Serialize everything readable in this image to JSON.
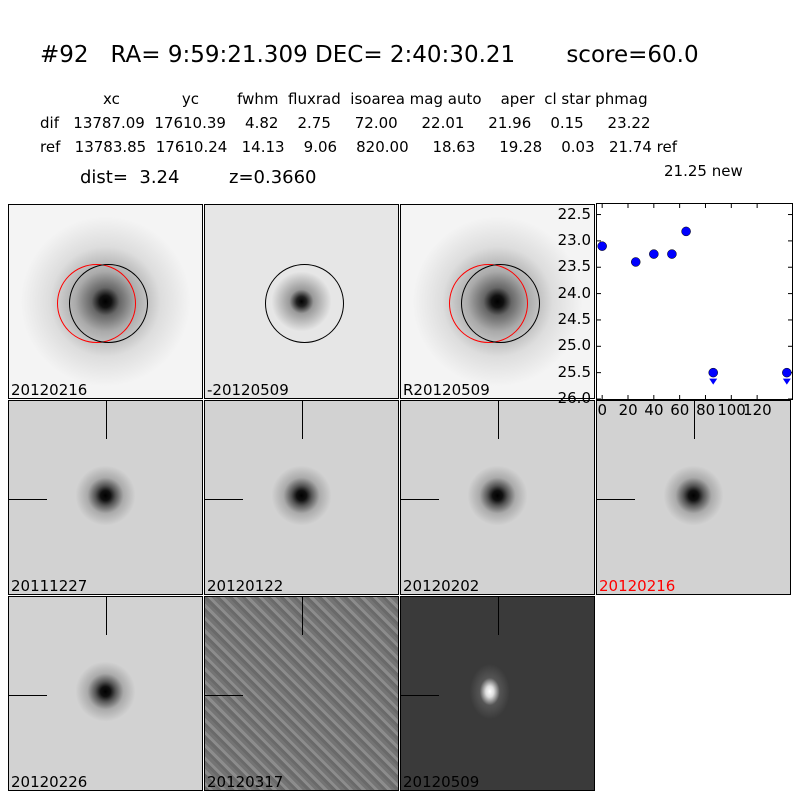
{
  "header": {
    "title": "#92   RA= 9:59:21.309 DEC= 2:40:30.21       score=60.0",
    "columns": "xc             yc        fwhm  fluxrad  isoarea mag auto    aper  cl star phmag",
    "dif_row": "dif   13787.09  17610.39    4.82    2.75     72.00     22.01     21.96    0.15     23.22",
    "ref_row": "ref   13783.85  17610.24   14.13    9.06    820.00     18.63     19.28    0.03   21.74 ref",
    "new_mag": "21.25 new",
    "dist": "dist=  3.24",
    "z": "z=0.3660"
  },
  "stamps": [
    {
      "label": "20120216",
      "style": "ref"
    },
    {
      "label": "-20120509",
      "style": "diff"
    },
    {
      "label": "R20120509",
      "style": "ref"
    },
    {
      "label": "20111227",
      "style": "epoch"
    },
    {
      "label": "20120122",
      "style": "epoch"
    },
    {
      "label": "20120202",
      "style": "epoch"
    },
    {
      "label": "20120216",
      "style": "epoch",
      "color": "#ff0000"
    },
    {
      "label": "20120226",
      "style": "epoch"
    },
    {
      "label": "20120317",
      "style": "noise"
    },
    {
      "label": "20120509",
      "style": "dark"
    }
  ],
  "chart_data": {
    "type": "scatter",
    "xlim": [
      -4,
      147
    ],
    "ylim": [
      26.0,
      22.3
    ],
    "y_inverted": true,
    "xticks": [
      "0",
      "20",
      "40",
      "60",
      "80",
      "100",
      "120"
    ],
    "xtick_values": [
      0,
      20,
      40,
      60,
      80,
      100,
      120
    ],
    "yticks": [
      "22.5",
      "23.0",
      "23.5",
      "24.0",
      "24.5",
      "25.0",
      "25.5",
      "26.0"
    ],
    "ytick_values": [
      22.5,
      23.0,
      23.5,
      24.0,
      24.5,
      25.0,
      25.5,
      26.0
    ],
    "points": [
      {
        "x": 0,
        "y": 23.1
      },
      {
        "x": 26,
        "y": 23.4
      },
      {
        "x": 40,
        "y": 23.25
      },
      {
        "x": 54,
        "y": 23.25
      },
      {
        "x": 65,
        "y": 22.82
      },
      {
        "x": 86,
        "y": 25.5,
        "upper_limit": true
      },
      {
        "x": 143,
        "y": 25.5,
        "upper_limit": true
      }
    ],
    "color": "#0000ff"
  }
}
